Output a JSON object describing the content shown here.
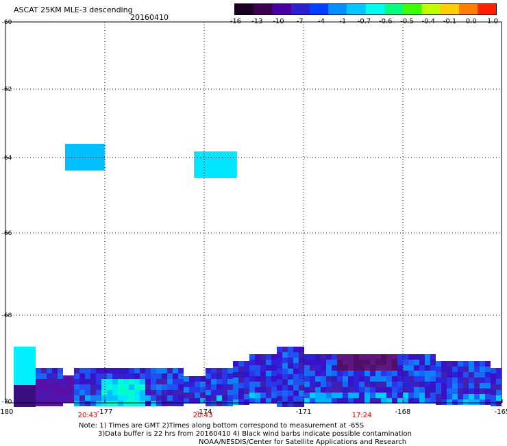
{
  "header": {
    "title": "ASCAT 25KM MLE-3 descending",
    "date": "20160410"
  },
  "colorbar": {
    "labels": [
      "-16",
      "-13",
      "-10",
      "-7",
      "-4",
      "-1",
      "-0.7",
      "-0.6",
      "-0.5",
      "-0.4",
      "-0.1",
      "0.0",
      "1.0"
    ],
    "colors": [
      "#1a0020",
      "#3a0050",
      "#4a00a0",
      "#2a20d0",
      "#0040ff",
      "#0090ff",
      "#00c8ff",
      "#00ffee",
      "#00ff80",
      "#40ff00",
      "#c0ff00",
      "#ffd000",
      "#ff8000",
      "#ff2000"
    ]
  },
  "chart_data": {
    "type": "heatmap",
    "title": "ASCAT 25KM MLE-3 descending",
    "x_ticks": [
      "-180",
      "-177",
      "-174",
      "-171",
      "-168",
      "-165"
    ],
    "y_ticks": [
      "-60",
      "-62",
      "-64",
      "-66",
      "-68",
      "-70"
    ],
    "xlim": [
      -180,
      -165
    ],
    "ylim": [
      -70,
      -60
    ],
    "grid": true,
    "times": [
      "20:43",
      "20:43",
      "17:24"
    ],
    "blobs": [
      {
        "lon": [
          -178.2,
          -177.0
        ],
        "lat": [
          -63.9,
          -63.2
        ],
        "color": "#00c0ff"
      },
      {
        "lon": [
          -174.3,
          -173.0
        ],
        "lat": [
          -64.1,
          -63.4
        ],
        "color": "#00e6ff"
      }
    ]
  },
  "footer": {
    "note_line1": "Note: 1) Times are GMT 2)Times along bottom correspond to measurement at -65S",
    "note_line2": "3)Data buffer is 22 hrs from 20160410 4) Black wind barbs indicate possible contamination",
    "credit": "NOAA/NESDIS/Center for Satellite Applications and Research"
  }
}
